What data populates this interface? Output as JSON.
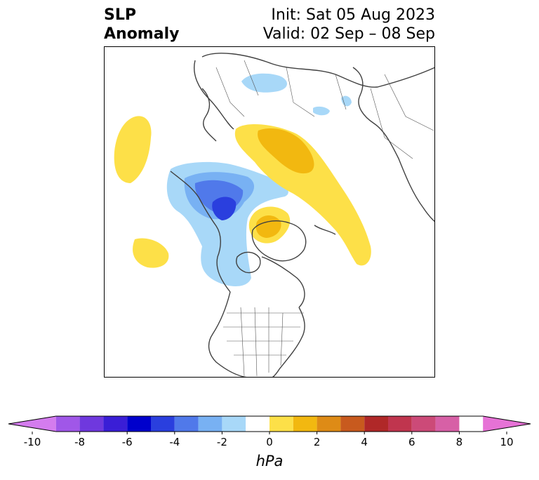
{
  "header": {
    "variable_line1": "SLP",
    "variable_line2": "Anomaly",
    "init_text": "Init: Sat 05 Aug 2023",
    "valid_text": "Valid: 02 Sep – 08 Sep"
  },
  "map": {
    "region": "North Polar stereographic (Northern Hemisphere)",
    "features": [
      "coastlines",
      "country borders",
      "US state borders"
    ]
  },
  "colorbar": {
    "unit": "hPa",
    "tick_labels": [
      "-10",
      "-8",
      "-6",
      "-4",
      "-2",
      "0",
      "2",
      "4",
      "6",
      "8",
      "10"
    ],
    "levels": [
      -10,
      -9,
      -8,
      -7,
      -6,
      -5,
      -4,
      -3,
      -2,
      -1,
      1,
      2,
      3,
      4,
      5,
      6,
      7,
      8,
      9,
      10
    ],
    "colors": [
      "#d47cee",
      "#a057e8",
      "#6f38de",
      "#3a1ed6",
      "#0000cc",
      "#2a3fde",
      "#5079ea",
      "#78b1f3",
      "#a8d8f8",
      "#ffffff",
      "#fde048",
      "#f2b810",
      "#de8b16",
      "#c85a1e",
      "#b02828",
      "#c0354e",
      "#cc4a78",
      "#d760a6",
      "#e672d6"
    ],
    "extend": "both"
  }
}
